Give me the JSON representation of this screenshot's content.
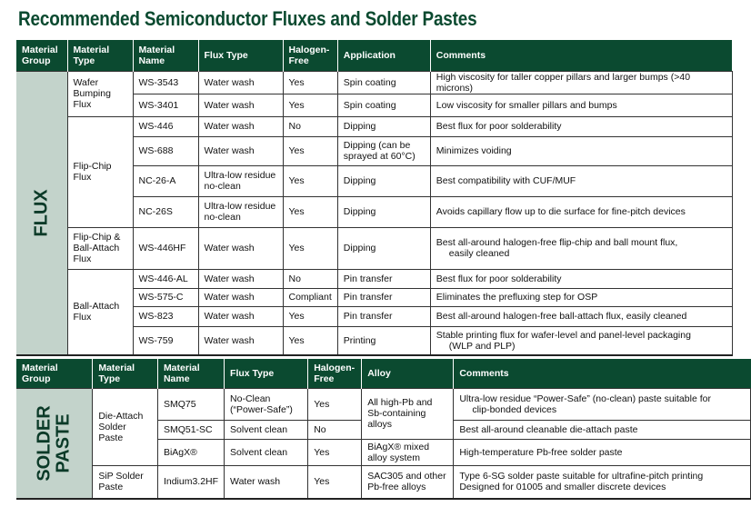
{
  "title": "Recommended Semiconductor Fluxes and Solder Pastes",
  "colors": {
    "header_bg": "#0b4a30",
    "group_bg": "#c3d3cb"
  },
  "flux": {
    "headers": [
      "Material Group",
      "Material Type",
      "Material Name",
      "Flux Type",
      "Halogen-Free",
      "Application",
      "Comments"
    ],
    "group": "FLUX",
    "types": [
      "Wafer Bumping Flux",
      "Flip-Chip Flux",
      "Flip-Chip & Ball-Attach Flux",
      "Ball-Attach Flux"
    ],
    "rows": [
      [
        "WS-3543",
        "Water wash",
        "Yes",
        "Spin coating",
        "High viscosity for taller copper pillars and larger bumps (>40 microns)"
      ],
      [
        "WS-3401",
        "Water wash",
        "Yes",
        "Spin coating",
        "Low viscosity for smaller pillars and bumps"
      ],
      [
        "WS-446",
        "Water wash",
        "No",
        "Dipping",
        "Best flux for poor solderability"
      ],
      [
        "WS-688",
        "Water wash",
        "Yes",
        "Dipping (can be sprayed at 60°C)",
        "Minimizes voiding"
      ],
      [
        "NC-26-A",
        "Ultra-low residue no-clean",
        "Yes",
        "Dipping",
        "Best compatibility with CUF/MUF"
      ],
      [
        "NC-26S",
        "Ultra-low residue no-clean",
        "Yes",
        "Dipping",
        "Avoids capillary flow up to die surface for fine-pitch devices"
      ],
      [
        "WS-446HF",
        "Water wash",
        "Yes",
        "Dipping",
        "Best all-around halogen-free flip-chip and ball mount flux,",
        "easily cleaned"
      ],
      [
        "WS-446-AL",
        "Water wash",
        "No",
        "Pin transfer",
        "Best flux for poor solderability"
      ],
      [
        "WS-575-C",
        "Water wash",
        "Compliant",
        "Pin transfer",
        "Eliminates the prefluxing step for OSP"
      ],
      [
        "WS-823",
        "Water wash",
        "Yes",
        "Pin transfer",
        "Best all-around halogen-free ball-attach flux, easily cleaned"
      ],
      [
        "WS-759",
        "Water wash",
        "Yes",
        "Printing",
        "Stable printing flux for wafer-level and panel-level packaging",
        "(WLP and PLP)"
      ]
    ]
  },
  "paste": {
    "headers": [
      "Material Group",
      "Material Type",
      "Material Name",
      "Flux Type",
      "Halogen-Free",
      "Alloy",
      "Comments"
    ],
    "group_line1": "SOLDER",
    "group_line2": "PASTE",
    "types": [
      "Die-Attach Solder Paste",
      "SiP Solder Paste"
    ],
    "rows": [
      [
        "SMQ75",
        "No-Clean (“Power-Safe”)",
        "Yes",
        "All high-Pb and Sb-containing alloys",
        "Ultra-low residue “Power-Safe” (no-clean) paste suitable for",
        "clip-bonded devices"
      ],
      [
        "SMQ51-SC",
        "Solvent clean",
        "No",
        "",
        "Best all-around cleanable die-attach paste"
      ],
      [
        "BiAgX®",
        "Solvent clean",
        "Yes",
        "BiAgX® mixed alloy system",
        "High-temperature Pb-free solder paste"
      ],
      [
        "Indium3.2HF",
        "Water wash",
        "Yes",
        "SAC305 and other Pb-free alloys",
        "Type 6-SG solder paste suitable for ultrafine-pitch printing",
        "Designed for 01005 and smaller discrete devices"
      ]
    ]
  }
}
